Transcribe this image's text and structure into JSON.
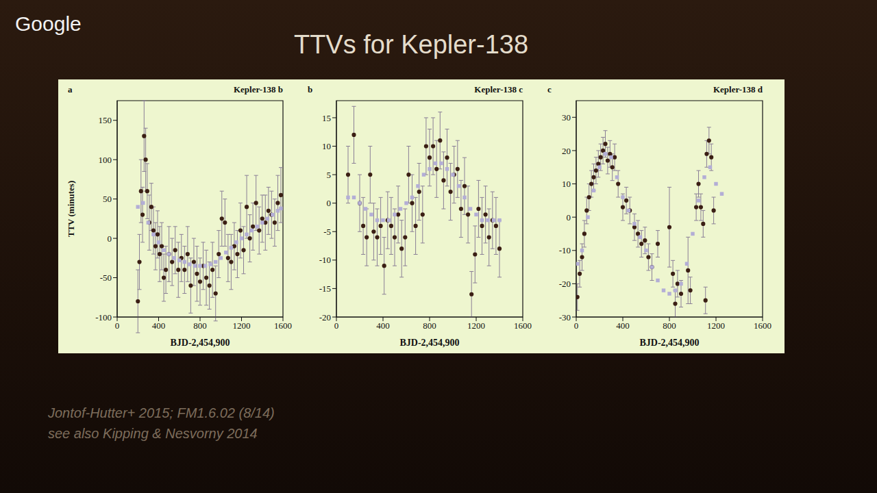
{
  "slide": {
    "title": "TTVs for Kepler-138",
    "citation": [
      "Jontof-Hutter+ 2015; FM1.6.02 (8/14)",
      "see also Kipping & Nesvorny 2014"
    ],
    "watermark": "Google"
  },
  "chart_data": [
    {
      "type": "scatter",
      "title": "Kepler-138 b",
      "panel": "a",
      "x_label": "BJD-2,454,900",
      "y_label": "TTV (minutes)",
      "xlim": [
        0,
        1600
      ],
      "xticks": [
        0,
        400,
        800,
        1200,
        1600
      ],
      "ylim": [
        -100,
        175
      ],
      "yticks": [
        -100,
        -50,
        0,
        50,
        100,
        150
      ],
      "series": [
        {
          "color": "#3b1f14",
          "marker": "circle",
          "x": [
            200,
            215,
            230,
            245,
            260,
            275,
            290,
            310,
            330,
            350,
            370,
            390,
            410,
            430,
            450,
            470,
            500,
            530,
            560,
            590,
            620,
            650,
            680,
            710,
            740,
            770,
            800,
            830,
            860,
            890,
            920,
            950,
            980,
            1010,
            1040,
            1070,
            1100,
            1130,
            1160,
            1190,
            1220,
            1250,
            1280,
            1310,
            1340,
            1370,
            1400,
            1430,
            1460,
            1490,
            1520,
            1550,
            1580
          ],
          "values": [
            -80,
            -30,
            60,
            30,
            130,
            100,
            60,
            20,
            40,
            10,
            -10,
            5,
            -20,
            -10,
            -50,
            -40,
            -20,
            -30,
            -15,
            -40,
            -25,
            -40,
            -20,
            -60,
            -30,
            -45,
            -55,
            -35,
            -50,
            -60,
            -40,
            -70,
            -20,
            25,
            20,
            -25,
            -30,
            -10,
            -20,
            10,
            -15,
            40,
            0,
            15,
            45,
            10,
            25,
            20,
            35,
            30,
            20,
            45,
            55
          ],
          "errors": [
            40,
            35,
            40,
            35,
            45,
            40,
            35,
            35,
            30,
            30,
            30,
            30,
            35,
            30,
            30,
            30,
            35,
            30,
            30,
            35,
            30,
            30,
            35,
            35,
            30,
            35,
            30,
            30,
            35,
            30,
            35,
            35,
            30,
            35,
            30,
            30,
            35,
            30,
            30,
            35,
            30,
            40,
            30,
            30,
            35,
            30,
            30,
            35,
            30,
            30,
            30,
            35,
            35
          ]
        },
        {
          "color": "#b3aed6",
          "marker": "square",
          "x": [
            200,
            250,
            300,
            350,
            400,
            450,
            500,
            550,
            600,
            650,
            700,
            750,
            800,
            850,
            900,
            950,
            1000,
            1050,
            1100,
            1150,
            1200,
            1250,
            1300,
            1350,
            1400,
            1450,
            1500,
            1550,
            1580
          ],
          "values": [
            40,
            45,
            20,
            5,
            -5,
            -15,
            -20,
            -25,
            -28,
            -30,
            -33,
            -35,
            -35,
            -35,
            -33,
            -30,
            -25,
            -18,
            -12,
            -5,
            0,
            5,
            10,
            15,
            20,
            25,
            30,
            35,
            38
          ]
        }
      ]
    },
    {
      "type": "scatter",
      "title": "Kepler-138 c",
      "panel": "b",
      "x_label": "BJD-2,454,900",
      "xlim": [
        0,
        1600
      ],
      "xticks": [
        0,
        400,
        800,
        1200,
        1600
      ],
      "ylim": [
        -20,
        18
      ],
      "yticks": [
        -20,
        -15,
        -10,
        -5,
        0,
        5,
        10,
        15
      ],
      "series": [
        {
          "color": "#3b1f14",
          "marker": "circle",
          "x": [
            100,
            150,
            200,
            230,
            260,
            290,
            320,
            350,
            380,
            410,
            440,
            470,
            500,
            530,
            560,
            590,
            620,
            650,
            680,
            710,
            740,
            770,
            800,
            830,
            860,
            890,
            920,
            950,
            980,
            1010,
            1040,
            1070,
            1100,
            1130,
            1160,
            1190,
            1220,
            1250,
            1280,
            1310,
            1340,
            1370,
            1400
          ],
          "values": [
            5,
            12,
            0,
            -4,
            -6,
            5,
            -5,
            -6,
            -4,
            -11,
            -3,
            -4,
            -6,
            -2,
            -8,
            -6,
            5,
            0,
            -4,
            2,
            -2,
            10,
            8,
            10,
            6,
            11,
            4,
            8,
            2,
            5,
            6,
            -1,
            3,
            -2,
            -16,
            -9,
            -1,
            -4,
            -2,
            -6,
            -3,
            -4,
            -8
          ],
          "errors": [
            5,
            5,
            5,
            5,
            5,
            5,
            5,
            5,
            5,
            5,
            5,
            5,
            5,
            5,
            5,
            5,
            5,
            5,
            5,
            5,
            5,
            5,
            5,
            5,
            5,
            5,
            5,
            5,
            5,
            5,
            5,
            5,
            5,
            5,
            4,
            5,
            5,
            5,
            5,
            5,
            5,
            5,
            5
          ]
        },
        {
          "color": "#b3aed6",
          "marker": "square",
          "x": [
            100,
            150,
            200,
            250,
            300,
            350,
            400,
            450,
            500,
            550,
            600,
            650,
            700,
            750,
            800,
            850,
            900,
            950,
            1000,
            1050,
            1100,
            1150,
            1200,
            1250,
            1300,
            1350,
            1400
          ],
          "values": [
            1,
            1,
            0,
            -1,
            -2,
            -3,
            -3,
            -3,
            -2,
            -1,
            0,
            1,
            3,
            5,
            6,
            7,
            7,
            6,
            5,
            3,
            1,
            -1,
            -2,
            -3,
            -3,
            -3,
            -3
          ]
        }
      ]
    },
    {
      "type": "scatter",
      "title": "Kepler-138 d",
      "panel": "c",
      "x_label": "BJD-2,454,900",
      "xlim": [
        0,
        1600
      ],
      "xticks": [
        0,
        400,
        800,
        1200,
        1600
      ],
      "ylim": [
        -30,
        35
      ],
      "yticks": [
        -30,
        -20,
        -10,
        0,
        10,
        20,
        30
      ],
      "series": [
        {
          "color": "#3b1f14",
          "marker": "circle",
          "x": [
            10,
            30,
            50,
            70,
            90,
            110,
            130,
            150,
            170,
            190,
            210,
            230,
            250,
            270,
            290,
            310,
            330,
            360,
            400,
            430,
            460,
            500,
            530,
            560,
            590,
            620,
            650,
            700,
            800,
            830,
            850,
            870,
            900,
            960,
            980,
            1030,
            1050,
            1070,
            1090,
            1110,
            1120,
            1140,
            1160,
            1180
          ],
          "values": [
            -24,
            -17,
            -12,
            -5,
            2,
            6,
            10,
            12,
            14,
            16,
            18,
            20,
            22,
            17,
            19,
            15,
            18,
            10,
            3,
            5,
            2,
            -3,
            -5,
            -8,
            -7,
            -12,
            -15,
            -8,
            -3,
            -17,
            -26,
            -20,
            -23,
            -16,
            -22,
            3,
            10,
            3,
            -2,
            -25,
            19,
            23,
            18,
            2
          ],
          "errors": [
            4,
            4,
            4,
            4,
            4,
            4,
            4,
            4,
            4,
            4,
            4,
            4,
            4,
            4,
            4,
            4,
            4,
            4,
            4,
            4,
            4,
            4,
            4,
            4,
            4,
            4,
            4,
            4,
            12,
            4,
            4,
            4,
            4,
            10,
            4,
            4,
            4,
            4,
            4,
            4,
            4,
            4,
            4,
            4
          ]
        },
        {
          "color": "#b3aed6",
          "marker": "square",
          "x": [
            10,
            50,
            100,
            150,
            200,
            250,
            300,
            350,
            400,
            450,
            500,
            550,
            600,
            650,
            700,
            750,
            800,
            850,
            900,
            950,
            1000,
            1050,
            1100,
            1150,
            1200,
            1250
          ],
          "values": [
            -14,
            -10,
            0,
            8,
            15,
            19,
            18,
            12,
            6,
            2,
            -2,
            -6,
            -10,
            -15,
            -19,
            -22,
            -23,
            -22,
            -20,
            -14,
            -5,
            5,
            12,
            15,
            10,
            7
          ]
        }
      ]
    }
  ]
}
